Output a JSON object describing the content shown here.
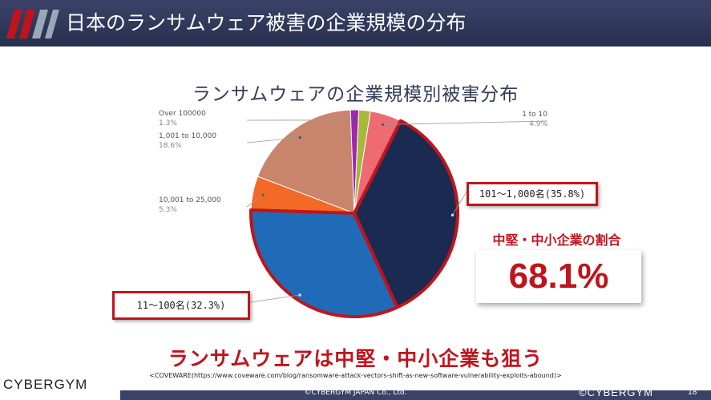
{
  "header": {
    "title": "日本のランサムウェア被害の企業規模の分布",
    "background_color": "#2e3558"
  },
  "chart_data": {
    "type": "pie",
    "title": "ランサムウェアの企業規模別被害分布",
    "slices": [
      {
        "label": "1 to 10",
        "value": 4.9,
        "display": "4.9%",
        "color": "#ef6b73"
      },
      {
        "label": "101〜1,000",
        "value": 35.8,
        "display": "",
        "color": "#1b2a50"
      },
      {
        "label": "11〜100",
        "value": 32.3,
        "display": "",
        "color": "#1f6bb8"
      },
      {
        "label": "10,001 to 25,000",
        "value": 5.3,
        "display": "5.3%",
        "color": "#f26a25"
      },
      {
        "label": "1,001 to 10,000",
        "value": 18.6,
        "display": "18.6%",
        "color": "#c8856c"
      },
      {
        "label": "Over 100000",
        "value": 1.3,
        "display": "1.3%",
        "color": "#9c27b0"
      },
      {
        "label": "",
        "value": 1.8,
        "display": "",
        "color": "#a8b83a"
      }
    ]
  },
  "callouts": {
    "mid": "101～1,000名(35.8%)",
    "small": "11～100名(32.3%)"
  },
  "share": {
    "label": "中堅・中小企業の割合",
    "value": "68.1%"
  },
  "tagline": "ランサムウェアは中堅・中小企業も狙う",
  "source": "<COVEWARE(https://www.coveware.com/blog/ransomware-attack-vectors-shift-as-new-software-vulnerability-exploits-abound)>",
  "footer": {
    "brand_left": "CYBERGYM",
    "copyright": "©CYBERGYM JAPAN Co., Ltd.",
    "brand_right": "©CYBERGYM",
    "page": "18"
  },
  "accent_color": "#c0141c"
}
